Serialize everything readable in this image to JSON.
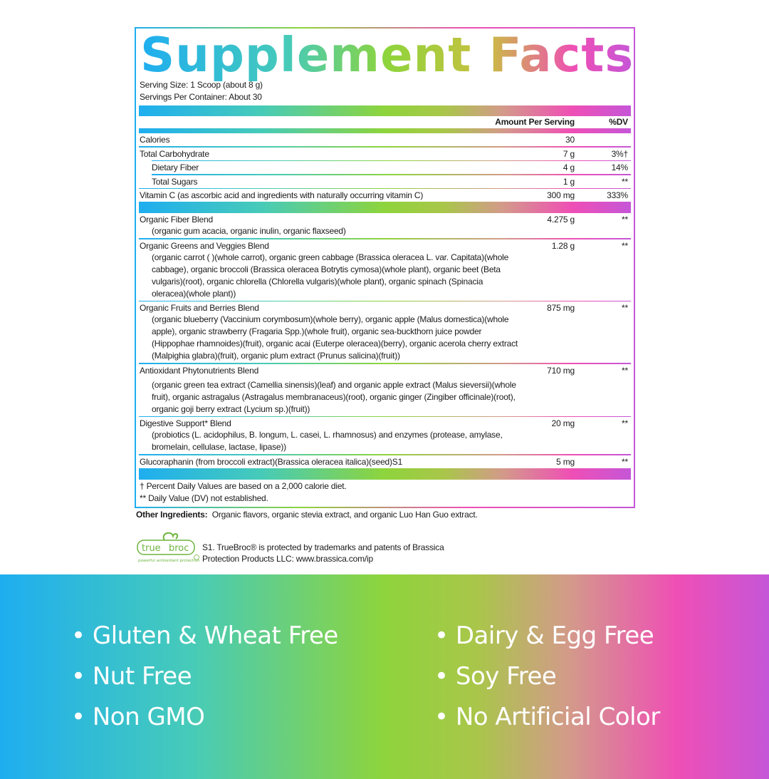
{
  "title": "Supplement Facts",
  "serving_size": "Serving Size: 1 Scoop (about 8 g)",
  "servings_per_container": "Servings Per Container: About 30",
  "header": {
    "amount": "Amount Per Serving",
    "dv": "%DV"
  },
  "nutrients": [
    {
      "name": "Calories",
      "amount": "30",
      "dv": ""
    },
    {
      "name": "Total Carbohydrate",
      "amount": "7 g",
      "dv": "3%†"
    },
    {
      "name": "Dietary Fiber",
      "amount": "4 g",
      "dv": "14%"
    },
    {
      "name": "Total Sugars",
      "amount": "1 g",
      "dv": "**"
    },
    {
      "name": "Vitamin C (as ascorbic acid and ingredients with naturally occurring vitamin C)",
      "amount": "300 mg",
      "dv": "333%"
    }
  ],
  "blends": [
    {
      "name": "Organic Fiber Blend",
      "amount": "4.275 g",
      "dv": "**",
      "desc": "(organic gum acacia, organic inulin, organic flaxseed)"
    },
    {
      "name": "Organic Greens and Veggies Blend",
      "amount": "1.28 g",
      "dv": "**",
      "desc": "(organic carrot (                    )(whole carrot), organic green cabbage (Brassica oleracea L. var. Capitata)(whole cabbage), organic broccoli (Brassica oleracea Botrytis cymosa)(whole plant), organic beet (Beta vulgaris)(root), organic chlorella (Chlorella vulgaris)(whole plant), organic spinach (Spinacia oleracea)(whole plant))"
    },
    {
      "name": "Organic Fruits and Berries Blend",
      "amount": "875 mg",
      "dv": "**",
      "desc": "(organic blueberry (Vaccinium corymbosum)(whole berry), organic apple (Malus domestica)(whole apple), organic strawberry (Fragaria Spp.)(whole fruit), organic sea-buckthorn juice powder (Hippophae rhamnoides)(fruit), organic acai (Euterpe oleracea)(berry), organic acerola cherry extract (Malpighia glabra)(fruit), organic plum extract (Prunus salicina)(fruit))"
    },
    {
      "name": "Antioxidant Phytonutrients Blend",
      "amount": "710 mg",
      "dv": "**",
      "desc": "(organic green tea extract (Camellia sinensis)(leaf) and organic apple extract (Malus sieversii)(whole fruit), organic astragalus (Astragalus membranaceus)(root), organic ginger (Zingiber officinale)(root), organic goji berry extract (Lycium sp.)(fruit))"
    },
    {
      "name": "Digestive Support* Blend",
      "amount": "20 mg",
      "dv": "**",
      "desc": "(probiotics (L. acidophilus, B. longum, L. casei, L. rhamnosus) and enzymes (protease, amylase, bromelain, cellulase, lactase, lipase))"
    },
    {
      "name": "Glucoraphanin (from broccoli extract)(Brassica oleracea italica)(seed)S1",
      "amount": "5 mg",
      "dv": "**",
      "desc": ""
    }
  ],
  "footnotes": [
    "† Percent Daily Values are based on a 2,000 calorie diet.",
    "** Daily Value (DV) not established."
  ],
  "other_ingredients": {
    "label": "Other Ingredients:",
    "text": "Organic flavors, organic stevia extract, and organic Luo Han Guo extract."
  },
  "truebroc": {
    "logo_text": "truebroc",
    "tagline": "powerful antioxidant protection",
    "line1": "S1. TrueBroc® is protected by trademarks and patents of Brassica",
    "line2": "Protection Products LLC: www.brassica.com/ip"
  },
  "claims": [
    "• Gluten & Wheat Free",
    "• Nut Free",
    "• Non GMO",
    "• Dairy & Egg Free",
    "• Soy Free",
    "• No Artificial Color"
  ],
  "colors": {
    "gradient": [
      "#1eaef0",
      "#47cbb8",
      "#8ed43c",
      "#ef4fb5",
      "#c556d8"
    ]
  }
}
